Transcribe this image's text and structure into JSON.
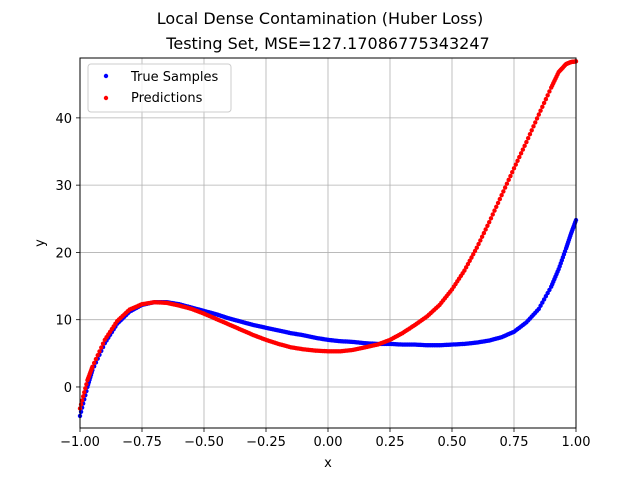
{
  "chart_data": {
    "type": "scatter",
    "title": "Local Dense Contamination (Huber Loss)",
    "subtitle": "Testing Set, MSE=127.17086775343247",
    "xlabel": "x",
    "ylabel": "y",
    "xlim": [
      -1.0,
      1.0
    ],
    "ylim": [
      -6.1,
      48.9
    ],
    "grid": true,
    "legend_position": "top-left",
    "x_ticks": [
      {
        "value": -1.0,
        "label": "−1.00"
      },
      {
        "value": -0.75,
        "label": "−0.75"
      },
      {
        "value": -0.5,
        "label": "−0.50"
      },
      {
        "value": -0.25,
        "label": "−0.25"
      },
      {
        "value": 0.0,
        "label": "0.00"
      },
      {
        "value": 0.25,
        "label": "0.25"
      },
      {
        "value": 0.5,
        "label": "0.50"
      },
      {
        "value": 0.75,
        "label": "0.75"
      },
      {
        "value": 1.0,
        "label": "1.00"
      }
    ],
    "y_ticks": [
      {
        "value": 0,
        "label": "0"
      },
      {
        "value": 10,
        "label": "10"
      },
      {
        "value": 20,
        "label": "20"
      },
      {
        "value": 30,
        "label": "30"
      },
      {
        "value": 40,
        "label": "40"
      }
    ],
    "series": [
      {
        "name": "True Samples",
        "color": "#0000ff",
        "x": [
          -1.0,
          -0.97,
          -0.95,
          -0.9,
          -0.85,
          -0.8,
          -0.75,
          -0.7,
          -0.65,
          -0.6,
          -0.55,
          -0.5,
          -0.45,
          -0.4,
          -0.35,
          -0.3,
          -0.25,
          -0.2,
          -0.15,
          -0.1,
          -0.05,
          0.0,
          0.05,
          0.1,
          0.15,
          0.2,
          0.25,
          0.3,
          0.35,
          0.4,
          0.45,
          0.5,
          0.55,
          0.6,
          0.65,
          0.7,
          0.75,
          0.8,
          0.85,
          0.9,
          0.93,
          0.96,
          0.98,
          1.0
        ],
        "y": [
          -4.3,
          0.0,
          2.5,
          6.5,
          9.4,
          11.2,
          12.2,
          12.6,
          12.6,
          12.3,
          11.8,
          11.3,
          10.8,
          10.2,
          9.7,
          9.2,
          8.8,
          8.4,
          8.0,
          7.7,
          7.3,
          7.0,
          6.8,
          6.7,
          6.5,
          6.4,
          6.4,
          6.3,
          6.3,
          6.2,
          6.2,
          6.3,
          6.4,
          6.6,
          6.9,
          7.4,
          8.2,
          9.6,
          11.6,
          14.9,
          17.5,
          20.6,
          22.8,
          24.8
        ]
      },
      {
        "name": "Predictions",
        "color": "#ff0000",
        "x": [
          -1.0,
          -0.97,
          -0.95,
          -0.9,
          -0.85,
          -0.8,
          -0.75,
          -0.7,
          -0.65,
          -0.6,
          -0.55,
          -0.5,
          -0.45,
          -0.4,
          -0.35,
          -0.3,
          -0.25,
          -0.2,
          -0.15,
          -0.1,
          -0.05,
          0.0,
          0.05,
          0.1,
          0.15,
          0.2,
          0.25,
          0.3,
          0.35,
          0.4,
          0.45,
          0.5,
          0.55,
          0.6,
          0.65,
          0.7,
          0.75,
          0.8,
          0.85,
          0.9,
          0.93,
          0.96,
          0.98,
          1.0
        ],
        "y": [
          -3.2,
          1.0,
          3.0,
          7.0,
          9.8,
          11.5,
          12.3,
          12.6,
          12.5,
          12.1,
          11.6,
          10.9,
          10.1,
          9.3,
          8.5,
          7.7,
          7.0,
          6.4,
          5.9,
          5.6,
          5.4,
          5.3,
          5.3,
          5.5,
          5.9,
          6.3,
          7.0,
          8.0,
          9.2,
          10.5,
          12.2,
          14.5,
          17.3,
          20.7,
          24.5,
          28.5,
          32.5,
          36.4,
          40.5,
          44.5,
          46.8,
          48.0,
          48.3,
          48.4
        ]
      }
    ]
  }
}
